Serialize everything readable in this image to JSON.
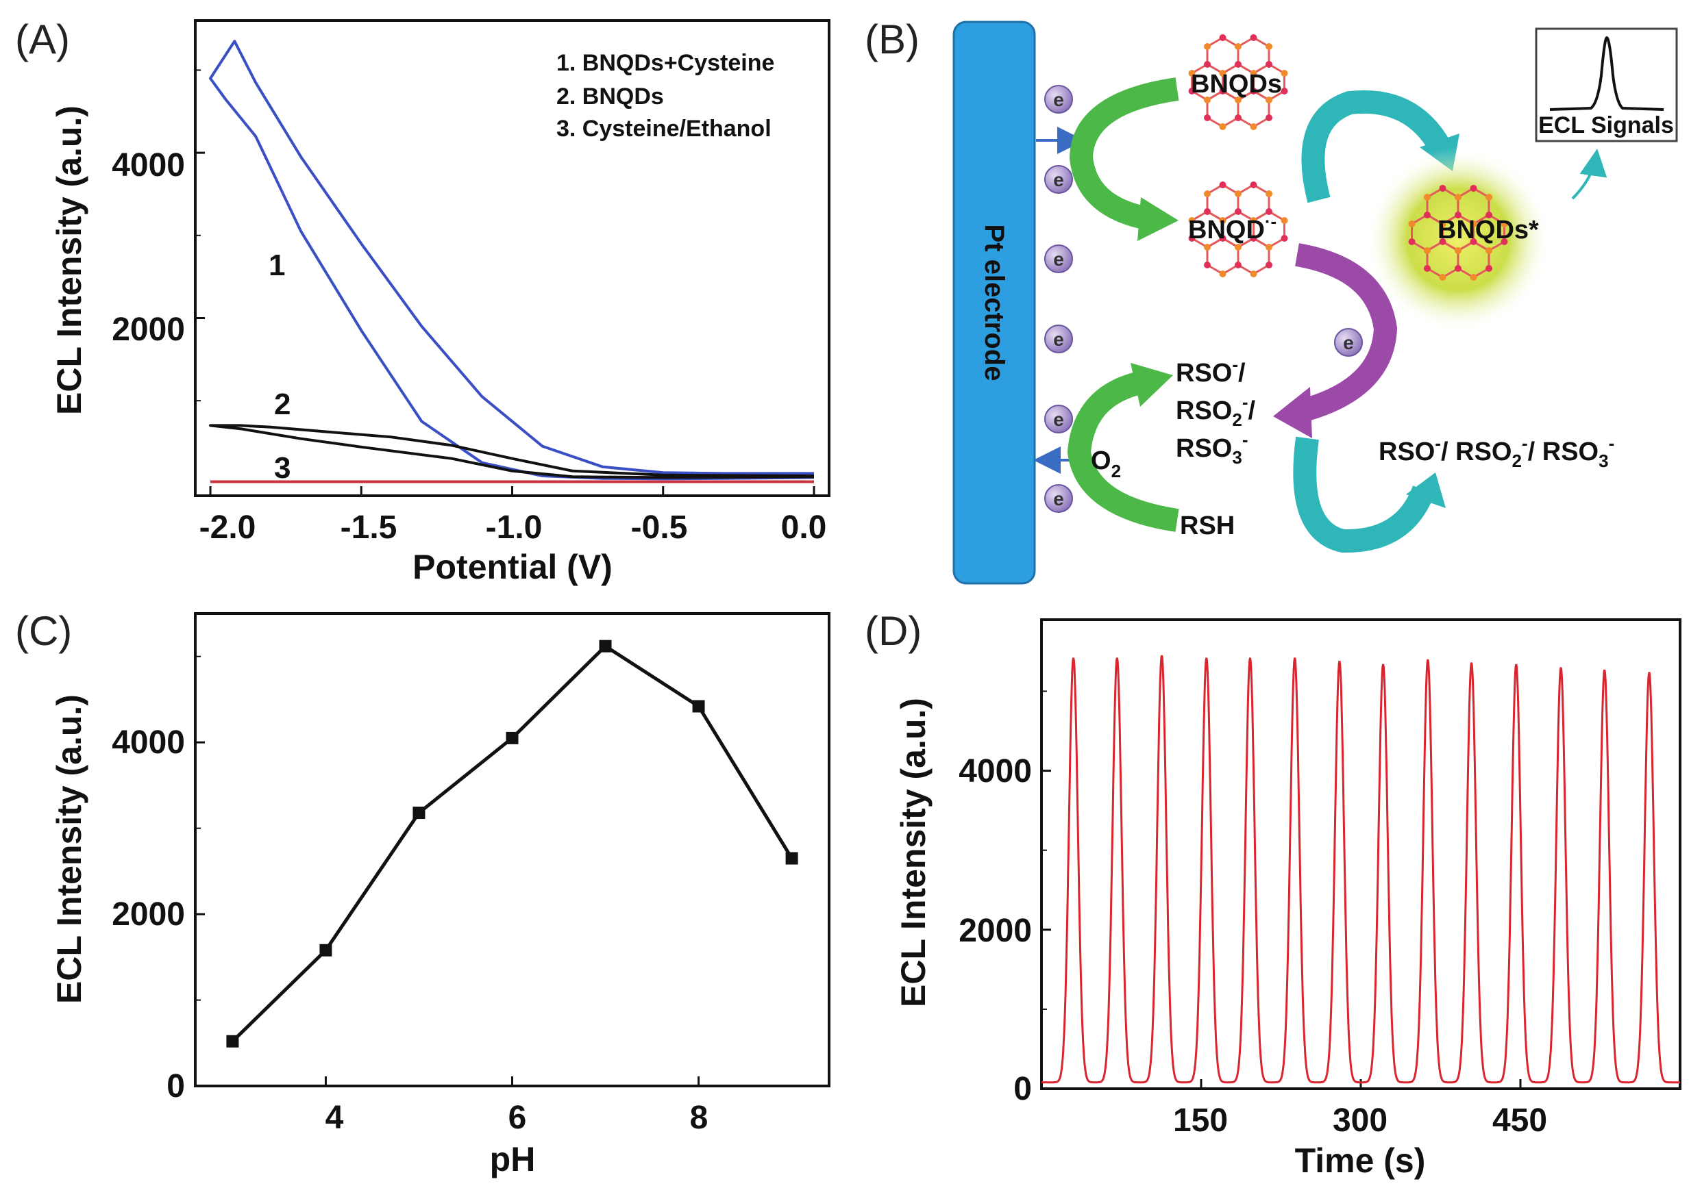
{
  "panels": {
    "a": "(A)",
    "b": "(B)",
    "c": "(C)",
    "d": "(D)"
  },
  "colors": {
    "curve1": "#3a4fc4",
    "curve2": "#111111",
    "curve3": "#c8323c",
    "green": "#4cb848",
    "purple": "#9b4aa8",
    "teal": "#2fb6b8",
    "electrode": "#2d9fe0",
    "glow": "#b8d52a",
    "atomRed": "#e0305a",
    "atomOrange": "#f08a2a",
    "bond": "#e25a5a",
    "trace": "#d9252e"
  },
  "chart_data": [
    {
      "id": "A",
      "type": "line",
      "xlabel": "Potential (V)",
      "ylabel": "ECL Intensity (a.u.)",
      "xlim": [
        -2.05,
        0.05
      ],
      "ylim": [
        -150,
        5600
      ],
      "xticks": [
        -2.0,
        -1.5,
        -1.0,
        -0.5,
        0.0
      ],
      "xtick_labels": [
        "-2.0",
        "-1.5",
        "-1.0",
        "-0.5",
        "0.0"
      ],
      "yticks": [
        2000,
        4000
      ],
      "ytick_labels": [
        "2000",
        "4000"
      ],
      "legend": [
        "1. BNQDs+Cysteine",
        "2. BNQDs",
        "3. Cysteine/Ethanol"
      ],
      "series": [
        {
          "name": "1",
          "label": "1",
          "x": [
            0.0,
            -0.3,
            -0.5,
            -0.7,
            -0.9,
            -1.1,
            -1.3,
            -1.5,
            -1.7,
            -1.85,
            -1.92,
            -2.0,
            -1.95,
            -1.85,
            -1.7,
            -1.5,
            -1.3,
            -1.1,
            -0.9,
            -0.7,
            -0.5,
            -0.3,
            0.0
          ],
          "y": [
            120,
            120,
            130,
            200,
            450,
            1050,
            1900,
            2900,
            3950,
            4850,
            5350,
            4900,
            4650,
            4200,
            3050,
            1850,
            750,
            250,
            90,
            60,
            55,
            60,
            70
          ]
        },
        {
          "name": "2",
          "label": "2",
          "x": [
            0.0,
            -0.5,
            -0.8,
            -1.0,
            -1.2,
            -1.4,
            -1.6,
            -1.8,
            -1.9,
            -2.0,
            -1.9,
            -1.7,
            -1.5,
            -1.2,
            -1.0,
            -0.8,
            -0.5,
            0.0
          ],
          "y": [
            90,
            100,
            150,
            300,
            460,
            560,
            620,
            680,
            700,
            700,
            660,
            540,
            440,
            300,
            150,
            80,
            70,
            80
          ]
        },
        {
          "name": "3",
          "label": "3",
          "x": [
            -2.0,
            0.0
          ],
          "y": [
            20,
            20
          ]
        }
      ]
    },
    {
      "id": "C",
      "type": "line",
      "xlabel": "pH",
      "ylabel": "ECL Intensity (a.u.)",
      "xlim": [
        2.6,
        9.4
      ],
      "ylim": [
        0,
        5500
      ],
      "xticks": [
        4,
        6,
        8
      ],
      "xtick_labels": [
        "4",
        "6",
        "8"
      ],
      "yticks": [
        0,
        2000,
        4000
      ],
      "ytick_labels": [
        "0",
        "2000",
        "4000"
      ],
      "x": [
        3,
        4,
        5,
        6,
        7,
        8,
        9
      ],
      "y": [
        520,
        1580,
        3180,
        4050,
        5120,
        4420,
        2650
      ]
    },
    {
      "id": "D",
      "type": "line",
      "xlabel": "Time (s)",
      "ylabel": "ECL Intensity (a.u.)",
      "xlim": [
        0,
        600
      ],
      "ylim": [
        0,
        5900
      ],
      "xticks": [
        150,
        300,
        450
      ],
      "xtick_labels": [
        "150",
        "300",
        "450"
      ],
      "yticks": [
        0,
        2000,
        4000
      ],
      "ytick_labels": [
        "0",
        "2000",
        "4000"
      ],
      "baseline": 80,
      "peak_times": [
        30,
        71,
        113,
        155,
        196,
        238,
        280,
        321,
        363,
        404,
        446,
        488,
        529,
        571
      ],
      "peak_values": [
        5420,
        5420,
        5450,
        5420,
        5420,
        5420,
        5380,
        5340,
        5400,
        5360,
        5340,
        5300,
        5270,
        5240
      ]
    }
  ],
  "scheme": {
    "electrode": "Pt electrode",
    "bnqds": "BNQDs",
    "bnqd_anion": "BNQD",
    "bnqd_anion_sup": "·-",
    "excited": "BNQDs*",
    "ecl_signals": "ECL Signals",
    "e": "e",
    "o2": "O",
    "o2_sub": "2",
    "rsh": "RSH",
    "rso_line1": "RSO",
    "rso_line1_sup": "-",
    "rso_line1_tail": "/",
    "rso_line2": "RSO",
    "rso_line2_sub": "2",
    "rso_line2_sup": "-",
    "rso_line2_tail": "/",
    "rso_line3": "RSO",
    "rso_line3_sub": "3",
    "rso_line3_sup": "-",
    "products_p1": "RSO",
    "products_p1_sup": "-",
    "products_p2": "/ RSO",
    "products_p2_sub": "2",
    "products_p2_sup": "-",
    "products_p3": "/ RSO",
    "products_p3_sub": "3",
    "products_p3_sup": "-"
  }
}
